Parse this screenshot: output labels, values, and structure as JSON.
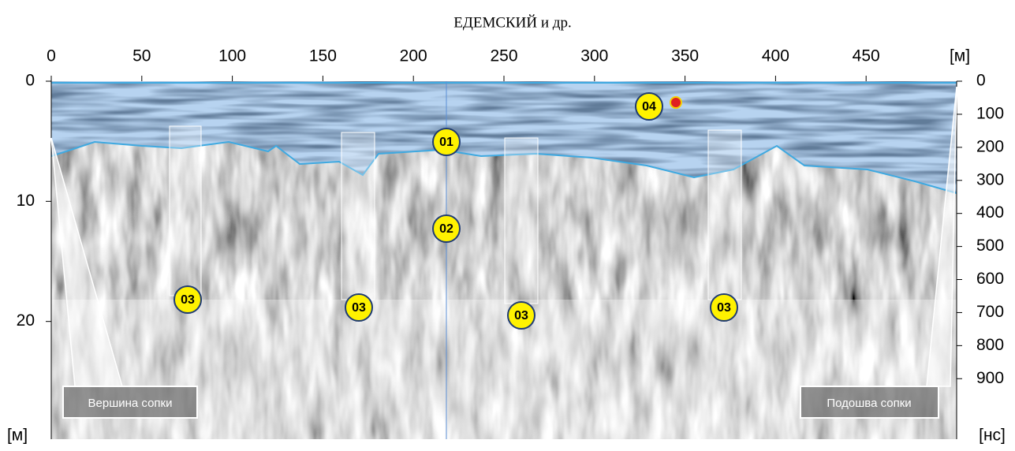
{
  "chart_data": {
    "type": "radargram",
    "title": "ЕДЕМСКИЙ и др.",
    "xlim": [
      0,
      500
    ],
    "xticks": [
      0,
      50,
      100,
      150,
      200,
      250,
      300,
      350,
      400,
      450
    ],
    "x_unit": "[м]",
    "ylim": [
      0,
      29.8
    ],
    "yticks": [
      0,
      10,
      20
    ],
    "y_unit": "[м]",
    "y2lim": [
      0,
      1083
    ],
    "y2ticks": [
      0,
      100,
      200,
      300,
      400,
      500,
      600,
      700,
      800,
      900
    ],
    "y2_unit": "[нс]",
    "markers": [
      "01",
      "02",
      "03",
      "03",
      "03",
      "03",
      "04"
    ],
    "callouts": [
      "Вершина сопки",
      "Подошва сопки"
    ]
  }
}
